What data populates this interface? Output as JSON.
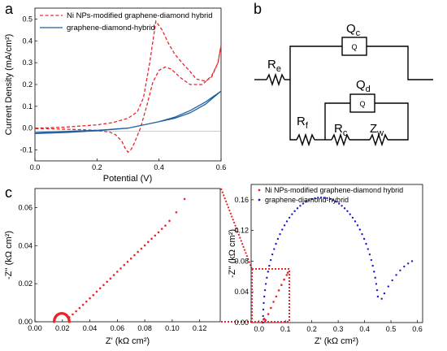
{
  "panel_labels": {
    "a": "a",
    "b": "b",
    "c": "c"
  },
  "colors": {
    "ni": "#e8262b",
    "gd": "#1f5fa0",
    "gd_points": "#1a1ad0",
    "black": "#000000"
  },
  "chart_data": [
    {
      "id": "cv",
      "type": "line",
      "xlabel": "Potential (V)",
      "ylabel": "Current Density (mA/cm²)",
      "xlim": [
        0,
        0.6
      ],
      "ylim": [
        -0.15,
        0.55
      ],
      "xticks": [
        0.0,
        0.2,
        0.4,
        0.6
      ],
      "xtick_labels": [
        "0.0",
        "0.2",
        "0.4",
        "0.6"
      ],
      "yticks": [
        -0.1,
        0.0,
        0.1,
        0.2,
        0.3,
        0.4,
        0.5
      ],
      "ytick_labels": [
        "-0.1",
        "0.0",
        "0.1",
        "0.2",
        "0.3",
        "0.4",
        "0.5"
      ],
      "legend_position": "top-left",
      "series": [
        {
          "name": "Ni NPs-modified graphene-diamond hybrid",
          "style": "dashed",
          "color": "#e8262b",
          "x": [
            0.0,
            0.05,
            0.1,
            0.15,
            0.2,
            0.25,
            0.3,
            0.33,
            0.35,
            0.37,
            0.39,
            0.41,
            0.43,
            0.45,
            0.48,
            0.5,
            0.52,
            0.55,
            0.57,
            0.59,
            0.6,
            0.59,
            0.57,
            0.54,
            0.5,
            0.47,
            0.44,
            0.42,
            0.4,
            0.38,
            0.36,
            0.34,
            0.32,
            0.31,
            0.3,
            0.29,
            0.28,
            0.26,
            0.24,
            0.2,
            0.15,
            0.1,
            0.05,
            0.0
          ],
          "y": [
            0.0,
            0.002,
            0.005,
            0.01,
            0.015,
            0.025,
            0.045,
            0.075,
            0.14,
            0.3,
            0.49,
            0.45,
            0.39,
            0.34,
            0.29,
            0.26,
            0.225,
            0.215,
            0.235,
            0.3,
            0.38,
            0.3,
            0.24,
            0.2,
            0.2,
            0.23,
            0.27,
            0.28,
            0.265,
            0.21,
            0.1,
            0.0,
            -0.07,
            -0.098,
            -0.11,
            -0.09,
            -0.06,
            -0.03,
            -0.018,
            -0.01,
            -0.007,
            -0.005,
            -0.003,
            -0.002
          ]
        },
        {
          "name": "graphene-diamond-hybrid",
          "style": "solid",
          "color": "#1f5fa0",
          "x": [
            0.0,
            0.1,
            0.2,
            0.3,
            0.35,
            0.4,
            0.45,
            0.5,
            0.55,
            0.6,
            0.55,
            0.5,
            0.45,
            0.4,
            0.35,
            0.3,
            0.2,
            0.1,
            0.0
          ],
          "y": [
            -0.02,
            -0.015,
            -0.01,
            0.0,
            0.015,
            0.03,
            0.045,
            0.07,
            0.11,
            0.17,
            0.12,
            0.08,
            0.05,
            0.03,
            0.015,
            0.0,
            -0.012,
            -0.02,
            -0.025
          ]
        }
      ]
    },
    {
      "id": "nyquist-zoom",
      "type": "scatter",
      "xlabel": "Z' (kΩ cm²)",
      "ylabel": "-Z'' (kΩ cm²)",
      "xlim": [
        0,
        0.135
      ],
      "ylim": [
        0,
        0.07
      ],
      "xticks": [
        0.0,
        0.02,
        0.04,
        0.06,
        0.08,
        0.1,
        0.12
      ],
      "xtick_labels": [
        "0.00",
        "0.02",
        "0.04",
        "0.06",
        "0.08",
        "0.10",
        "0.12"
      ],
      "yticks": [
        0.0,
        0.02,
        0.04,
        0.06
      ],
      "ytick_labels": [
        "0.00",
        "0.02",
        "0.04",
        "0.06"
      ],
      "series": [
        {
          "name": "Ni NPs-modified graphene-diamond hybrid",
          "color": "#e8262b",
          "arc": {
            "center": 0.0195,
            "radius": 0.0055
          },
          "tail_x": [
            0.025,
            0.0275,
            0.03,
            0.0325,
            0.035,
            0.0375,
            0.04,
            0.0425,
            0.045,
            0.0475,
            0.05,
            0.0525,
            0.055,
            0.0575,
            0.06,
            0.0625,
            0.065,
            0.0675,
            0.07,
            0.0725,
            0.075,
            0.0775,
            0.08,
            0.0825,
            0.085,
            0.0875,
            0.09,
            0.0925,
            0.095,
            0.098,
            0.103,
            0.109
          ],
          "tail_y": [
            0.0024,
            0.0039,
            0.0055,
            0.0072,
            0.0089,
            0.0106,
            0.0123,
            0.014,
            0.0158,
            0.0176,
            0.0193,
            0.021,
            0.0227,
            0.0245,
            0.0263,
            0.028,
            0.0298,
            0.0315,
            0.0332,
            0.035,
            0.0367,
            0.0384,
            0.0401,
            0.0419,
            0.0436,
            0.0453,
            0.047,
            0.0488,
            0.0505,
            0.053,
            0.0575,
            0.0645
          ]
        }
      ]
    },
    {
      "id": "nyquist-full",
      "type": "scatter",
      "xlabel": "Z' (kΩ cm²)",
      "ylabel": "-Z'' (kΩ cm²)",
      "xlim": [
        -0.03,
        0.62
      ],
      "ylim": [
        0,
        0.18
      ],
      "xticks": [
        0.0,
        0.1,
        0.2,
        0.3,
        0.4,
        0.5,
        0.6
      ],
      "xtick_labels": [
        "0.0",
        "0.1",
        "0.2",
        "0.3",
        "0.4",
        "0.5",
        "0.6"
      ],
      "yticks": [
        0.0,
        0.04,
        0.08,
        0.12,
        0.16
      ],
      "ytick_labels": [
        "0.00",
        "0.04",
        "0.08",
        "0.12",
        "0.16"
      ],
      "legend_position": "top-left",
      "series": [
        {
          "name": "Ni NPs-modified graphene-diamond hybrid",
          "color": "#e8262b",
          "x": [
            0.014,
            0.017,
            0.02,
            0.025,
            0.035,
            0.045,
            0.055,
            0.065,
            0.075,
            0.085,
            0.095,
            0.105,
            0.109
          ],
          "y": [
            0.0,
            0.004,
            0.005,
            0.003,
            0.011,
            0.019,
            0.027,
            0.034,
            0.042,
            0.049,
            0.056,
            0.062,
            0.065
          ]
        },
        {
          "name": "graphene-diamond-hybrid",
          "color": "#1a1ad0",
          "arc": {
            "center": 0.235,
            "radius": 0.22,
            "peak": 0.163
          },
          "tail_x": [
            0.465,
            0.475,
            0.49,
            0.505,
            0.52,
            0.535,
            0.55,
            0.565,
            0.58
          ],
          "tail_y": [
            0.031,
            0.038,
            0.047,
            0.055,
            0.062,
            0.068,
            0.073,
            0.077,
            0.08
          ]
        }
      ]
    }
  ],
  "circuit": {
    "labels": {
      "re": "R",
      "re_sub": "e",
      "qc": "Q",
      "qc_sub": "c",
      "qd": "Q",
      "qd_sub": "d",
      "rf": "R",
      "rf_sub": "f",
      "rc": "R",
      "rc_sub": "c",
      "zw": "Z",
      "zw_sub": "w",
      "box_qc": "Q",
      "box_qd": "Q"
    }
  }
}
